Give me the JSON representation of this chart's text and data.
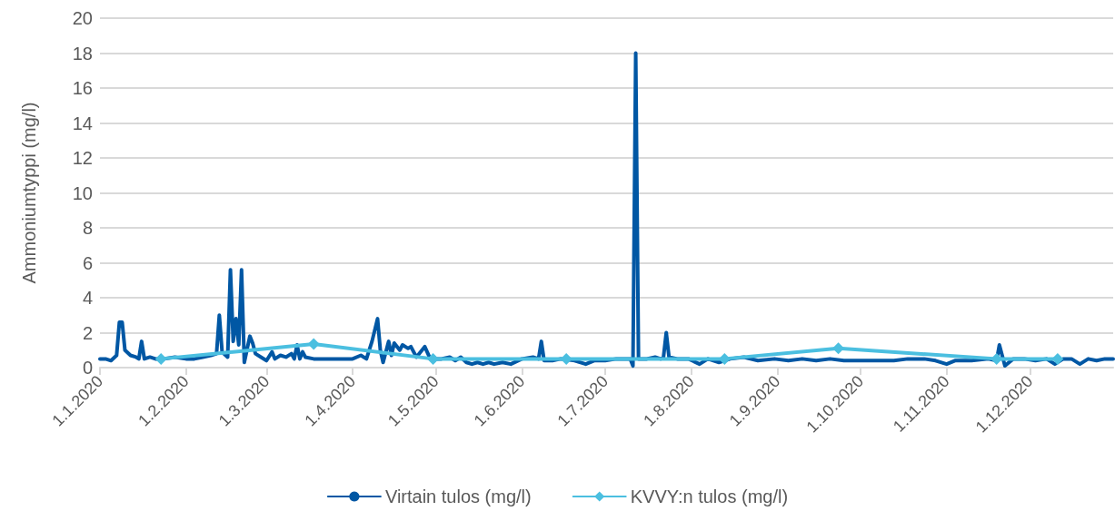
{
  "chart_data": {
    "type": "line",
    "ylabel": "Ammoniumtyppi (mg/l)",
    "xlim": [
      "2020-01-01",
      "2020-12-31"
    ],
    "xticks": [
      {
        "value": "2020-01-01",
        "label": "1.1.2020"
      },
      {
        "value": "2020-02-01",
        "label": "1.2.2020"
      },
      {
        "value": "2020-03-01",
        "label": "1.3.2020"
      },
      {
        "value": "2020-04-01",
        "label": "1.4.2020"
      },
      {
        "value": "2020-05-01",
        "label": "1.5.2020"
      },
      {
        "value": "2020-06-01",
        "label": "1.6.2020"
      },
      {
        "value": "2020-07-01",
        "label": "1.7.2020"
      },
      {
        "value": "2020-08-01",
        "label": "1.8.2020"
      },
      {
        "value": "2020-09-01",
        "label": "1.9.2020"
      },
      {
        "value": "2020-10-01",
        "label": "1.10.2020"
      },
      {
        "value": "2020-11-01",
        "label": "1.11.2020"
      },
      {
        "value": "2020-12-01",
        "label": "1.12.2020"
      }
    ],
    "ylim": [
      0,
      20
    ],
    "yticks": [
      0,
      2,
      4,
      6,
      8,
      10,
      12,
      14,
      16,
      18,
      20
    ],
    "grid": "y",
    "legend": "bottom",
    "line_style": "solid",
    "series": [
      {
        "name": "Virtain tulos (mg/l)",
        "color": "#0057a4",
        "marker": "none",
        "x": [
          "2020-01-01",
          "2020-01-03",
          "2020-01-05",
          "2020-01-07",
          "2020-01-08",
          "2020-01-09",
          "2020-01-10",
          "2020-01-12",
          "2020-01-14",
          "2020-01-15",
          "2020-01-16",
          "2020-01-17",
          "2020-01-19",
          "2020-01-21",
          "2020-01-24",
          "2020-01-28",
          "2020-02-01",
          "2020-02-04",
          "2020-02-07",
          "2020-02-10",
          "2020-02-12",
          "2020-02-13",
          "2020-02-14",
          "2020-02-16",
          "2020-02-17",
          "2020-02-18",
          "2020-02-19",
          "2020-02-20",
          "2020-02-21",
          "2020-02-22",
          "2020-02-24",
          "2020-02-25",
          "2020-02-26",
          "2020-02-28",
          "2020-03-01",
          "2020-03-03",
          "2020-03-04",
          "2020-03-06",
          "2020-03-08",
          "2020-03-10",
          "2020-03-11",
          "2020-03-12",
          "2020-03-13",
          "2020-03-14",
          "2020-03-15",
          "2020-03-18",
          "2020-03-25",
          "2020-04-01",
          "2020-04-04",
          "2020-04-06",
          "2020-04-08",
          "2020-04-10",
          "2020-04-11",
          "2020-04-12",
          "2020-04-14",
          "2020-04-15",
          "2020-04-16",
          "2020-04-18",
          "2020-04-19",
          "2020-04-21",
          "2020-04-22",
          "2020-04-24",
          "2020-04-27",
          "2020-04-29",
          "2020-05-03",
          "2020-05-06",
          "2020-05-08",
          "2020-05-10",
          "2020-05-12",
          "2020-05-14",
          "2020-05-16",
          "2020-05-18",
          "2020-05-20",
          "2020-05-22",
          "2020-05-25",
          "2020-05-28",
          "2020-06-01",
          "2020-06-05",
          "2020-06-07",
          "2020-06-08",
          "2020-06-09",
          "2020-06-12",
          "2020-06-15",
          "2020-06-20",
          "2020-06-24",
          "2020-06-27",
          "2020-07-01",
          "2020-07-05",
          "2020-07-10",
          "2020-07-11",
          "2020-07-12",
          "2020-07-13",
          "2020-07-16",
          "2020-07-19",
          "2020-07-21",
          "2020-07-22",
          "2020-07-23",
          "2020-07-24",
          "2020-07-27",
          "2020-07-31",
          "2020-08-04",
          "2020-08-07",
          "2020-08-11",
          "2020-08-15",
          "2020-08-20",
          "2020-08-25",
          "2020-08-31",
          "2020-09-05",
          "2020-09-10",
          "2020-09-15",
          "2020-09-20",
          "2020-09-25",
          "2020-10-01",
          "2020-10-07",
          "2020-10-13",
          "2020-10-18",
          "2020-10-24",
          "2020-10-28",
          "2020-11-01",
          "2020-11-04",
          "2020-11-10",
          "2020-11-16",
          "2020-11-19",
          "2020-11-20",
          "2020-11-22",
          "2020-11-25",
          "2020-11-29",
          "2020-12-03",
          "2020-12-07",
          "2020-12-10",
          "2020-12-13",
          "2020-12-16",
          "2020-12-19",
          "2020-12-22",
          "2020-12-25",
          "2020-12-28",
          "2020-12-31"
        ],
        "values": [
          0.5,
          0.5,
          0.4,
          0.7,
          2.6,
          2.6,
          1.0,
          0.7,
          0.6,
          0.5,
          1.5,
          0.5,
          0.6,
          0.5,
          0.5,
          0.6,
          0.5,
          0.5,
          0.6,
          0.7,
          0.8,
          3.0,
          0.9,
          0.6,
          5.6,
          1.5,
          2.8,
          1.3,
          5.6,
          0.3,
          1.8,
          1.4,
          0.8,
          0.6,
          0.4,
          0.9,
          0.5,
          0.7,
          0.6,
          0.8,
          0.5,
          1.3,
          0.5,
          0.9,
          0.6,
          0.5,
          0.5,
          0.5,
          0.7,
          0.5,
          1.5,
          2.8,
          1.0,
          0.3,
          1.5,
          0.7,
          1.4,
          1.0,
          1.3,
          1.1,
          1.2,
          0.6,
          1.2,
          0.5,
          0.5,
          0.6,
          0.4,
          0.6,
          0.3,
          0.2,
          0.3,
          0.2,
          0.3,
          0.2,
          0.3,
          0.2,
          0.5,
          0.6,
          0.5,
          1.5,
          0.4,
          0.4,
          0.5,
          0.4,
          0.2,
          0.4,
          0.4,
          0.5,
          0.5,
          0.1,
          18,
          0.5,
          0.5,
          0.6,
          0.5,
          0.6,
          2.0,
          0.6,
          0.5,
          0.5,
          0.2,
          0.5,
          0.3,
          0.5,
          0.6,
          0.4,
          0.5,
          0.4,
          0.5,
          0.4,
          0.5,
          0.4,
          0.4,
          0.4,
          0.4,
          0.5,
          0.5,
          0.4,
          0.2,
          0.4,
          0.4,
          0.5,
          0.4,
          1.3,
          0.1,
          0.5,
          0.5,
          0.4,
          0.5,
          0.2,
          0.5,
          0.5,
          0.2,
          0.5,
          0.4,
          0.5,
          0.5
        ]
      },
      {
        "name": "KVVY:n tulos (mg/l)",
        "color": "#4bbfe0",
        "marker": "diamond",
        "x": [
          "2020-01-23",
          "2020-03-18",
          "2020-04-30",
          "2020-06-17",
          "2020-08-13",
          "2020-09-23",
          "2020-11-19",
          "2020-12-11"
        ],
        "values": [
          0.5,
          1.35,
          0.5,
          0.5,
          0.5,
          1.1,
          0.5,
          0.5
        ]
      }
    ]
  }
}
